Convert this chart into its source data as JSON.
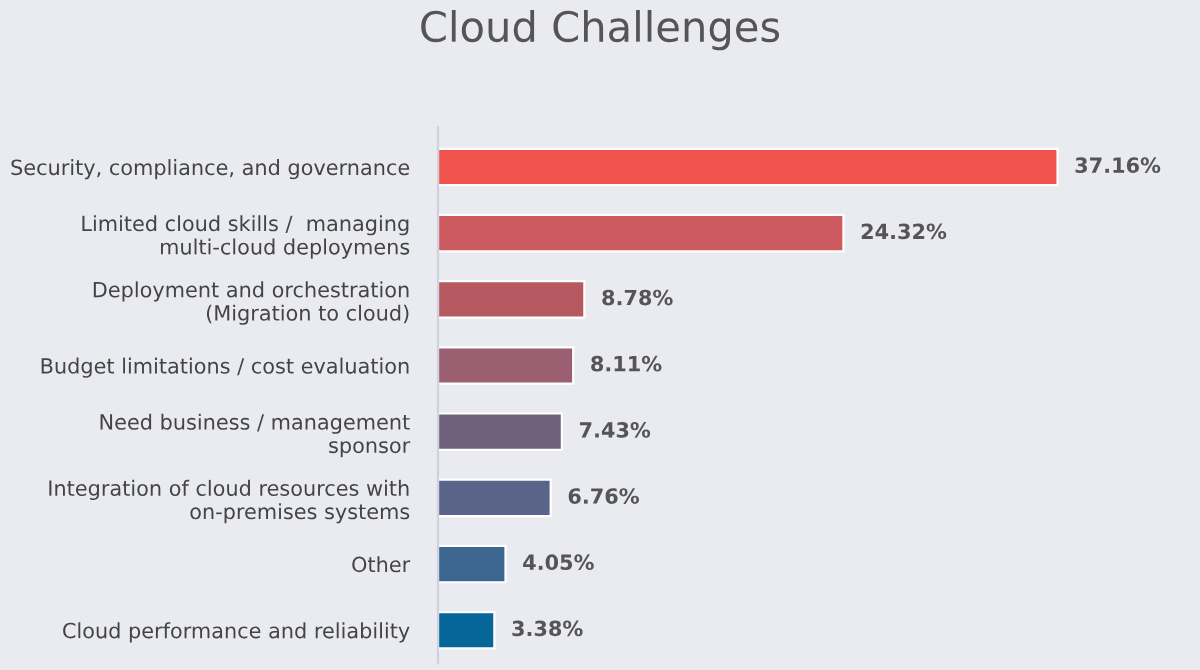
{
  "chart_data": {
    "type": "bar",
    "orientation": "horizontal",
    "title": "Cloud Challenges",
    "categories": [
      "Security, compliance, and governance",
      "Limited cloud skills /  managing\nmulti-cloud deploymens",
      "Deployment and orchestration\n(Migration to cloud)",
      "Budget limitations / cost evaluation",
      "Need business / management\nsponsor",
      "Integration of cloud resources with\non-premises systems",
      "Other",
      "Cloud performance and reliability"
    ],
    "values": [
      37.16,
      24.32,
      8.78,
      8.11,
      7.43,
      6.76,
      4.05,
      3.38
    ],
    "value_labels": [
      "37.16%",
      "24.32%",
      "8.78%",
      "8.11%",
      "7.43%",
      "6.76%",
      "4.05%",
      "3.38%"
    ],
    "colors": [
      "#f0524c",
      "#cc5a5e",
      "#b65860",
      "#9a5f70",
      "#6f607c",
      "#5a6488",
      "#3d6691",
      "#066699"
    ],
    "relative": false,
    "grid": false,
    "legend": false
  }
}
